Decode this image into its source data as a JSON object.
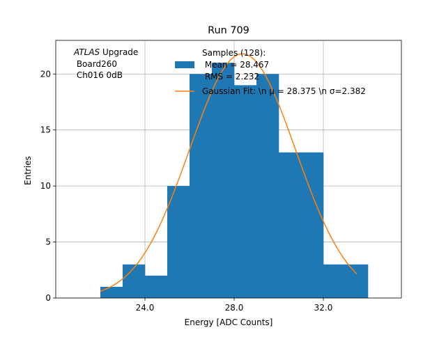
{
  "chart_data": {
    "type": "bar",
    "title": "Run 709",
    "xlabel": "Energy [ADC Counts]",
    "ylabel": "Entries",
    "xlim": [
      20.0,
      35.5
    ],
    "ylim": [
      0,
      23
    ],
    "xticks": [
      24.0,
      28.0,
      32.0
    ],
    "xtick_labels": [
      "24.0",
      "28.0",
      "32.0"
    ],
    "yticks": [
      0,
      5,
      10,
      15,
      20
    ],
    "ytick_labels": [
      "0",
      "5",
      "10",
      "15",
      "20"
    ],
    "grid": true,
    "bins": [
      {
        "x0": 22,
        "x1": 23,
        "value": 1
      },
      {
        "x0": 23,
        "x1": 24,
        "value": 3
      },
      {
        "x0": 24,
        "x1": 25,
        "value": 2
      },
      {
        "x0": 25,
        "x1": 26,
        "value": 10
      },
      {
        "x0": 26,
        "x1": 27,
        "value": 20
      },
      {
        "x0": 27,
        "x1": 28,
        "value": 21
      },
      {
        "x0": 28,
        "x1": 29,
        "value": 19
      },
      {
        "x0": 29,
        "x1": 30,
        "value": 20
      },
      {
        "x0": 30,
        "x1": 31,
        "value": 13
      },
      {
        "x0": 31,
        "x1": 32,
        "value": 13
      },
      {
        "x0": 32,
        "x1": 33,
        "value": 3
      },
      {
        "x0": 33,
        "x1": 34,
        "value": 3
      }
    ],
    "fit": {
      "function": "gaussian",
      "amplitude": 21.8,
      "mean": 28.375,
      "sigma": 2.382,
      "x_range": [
        22.0,
        33.5
      ]
    },
    "bar_color": "#1f77b4",
    "fit_color": "#ff7f0e",
    "annotation": {
      "experiment": "ATLAS",
      "suffix": " Upgrade",
      "line2": " Board260",
      "line3": " Ch016 0dB"
    },
    "legend": {
      "placement": "top-center",
      "hist_label_lines": [
        "Samples (128):",
        " Mean = 28.467",
        " RMS = 2.232"
      ],
      "fit_label": "Gaussian Fit: \\n μ = 28.375 \\n σ=2.382"
    }
  }
}
